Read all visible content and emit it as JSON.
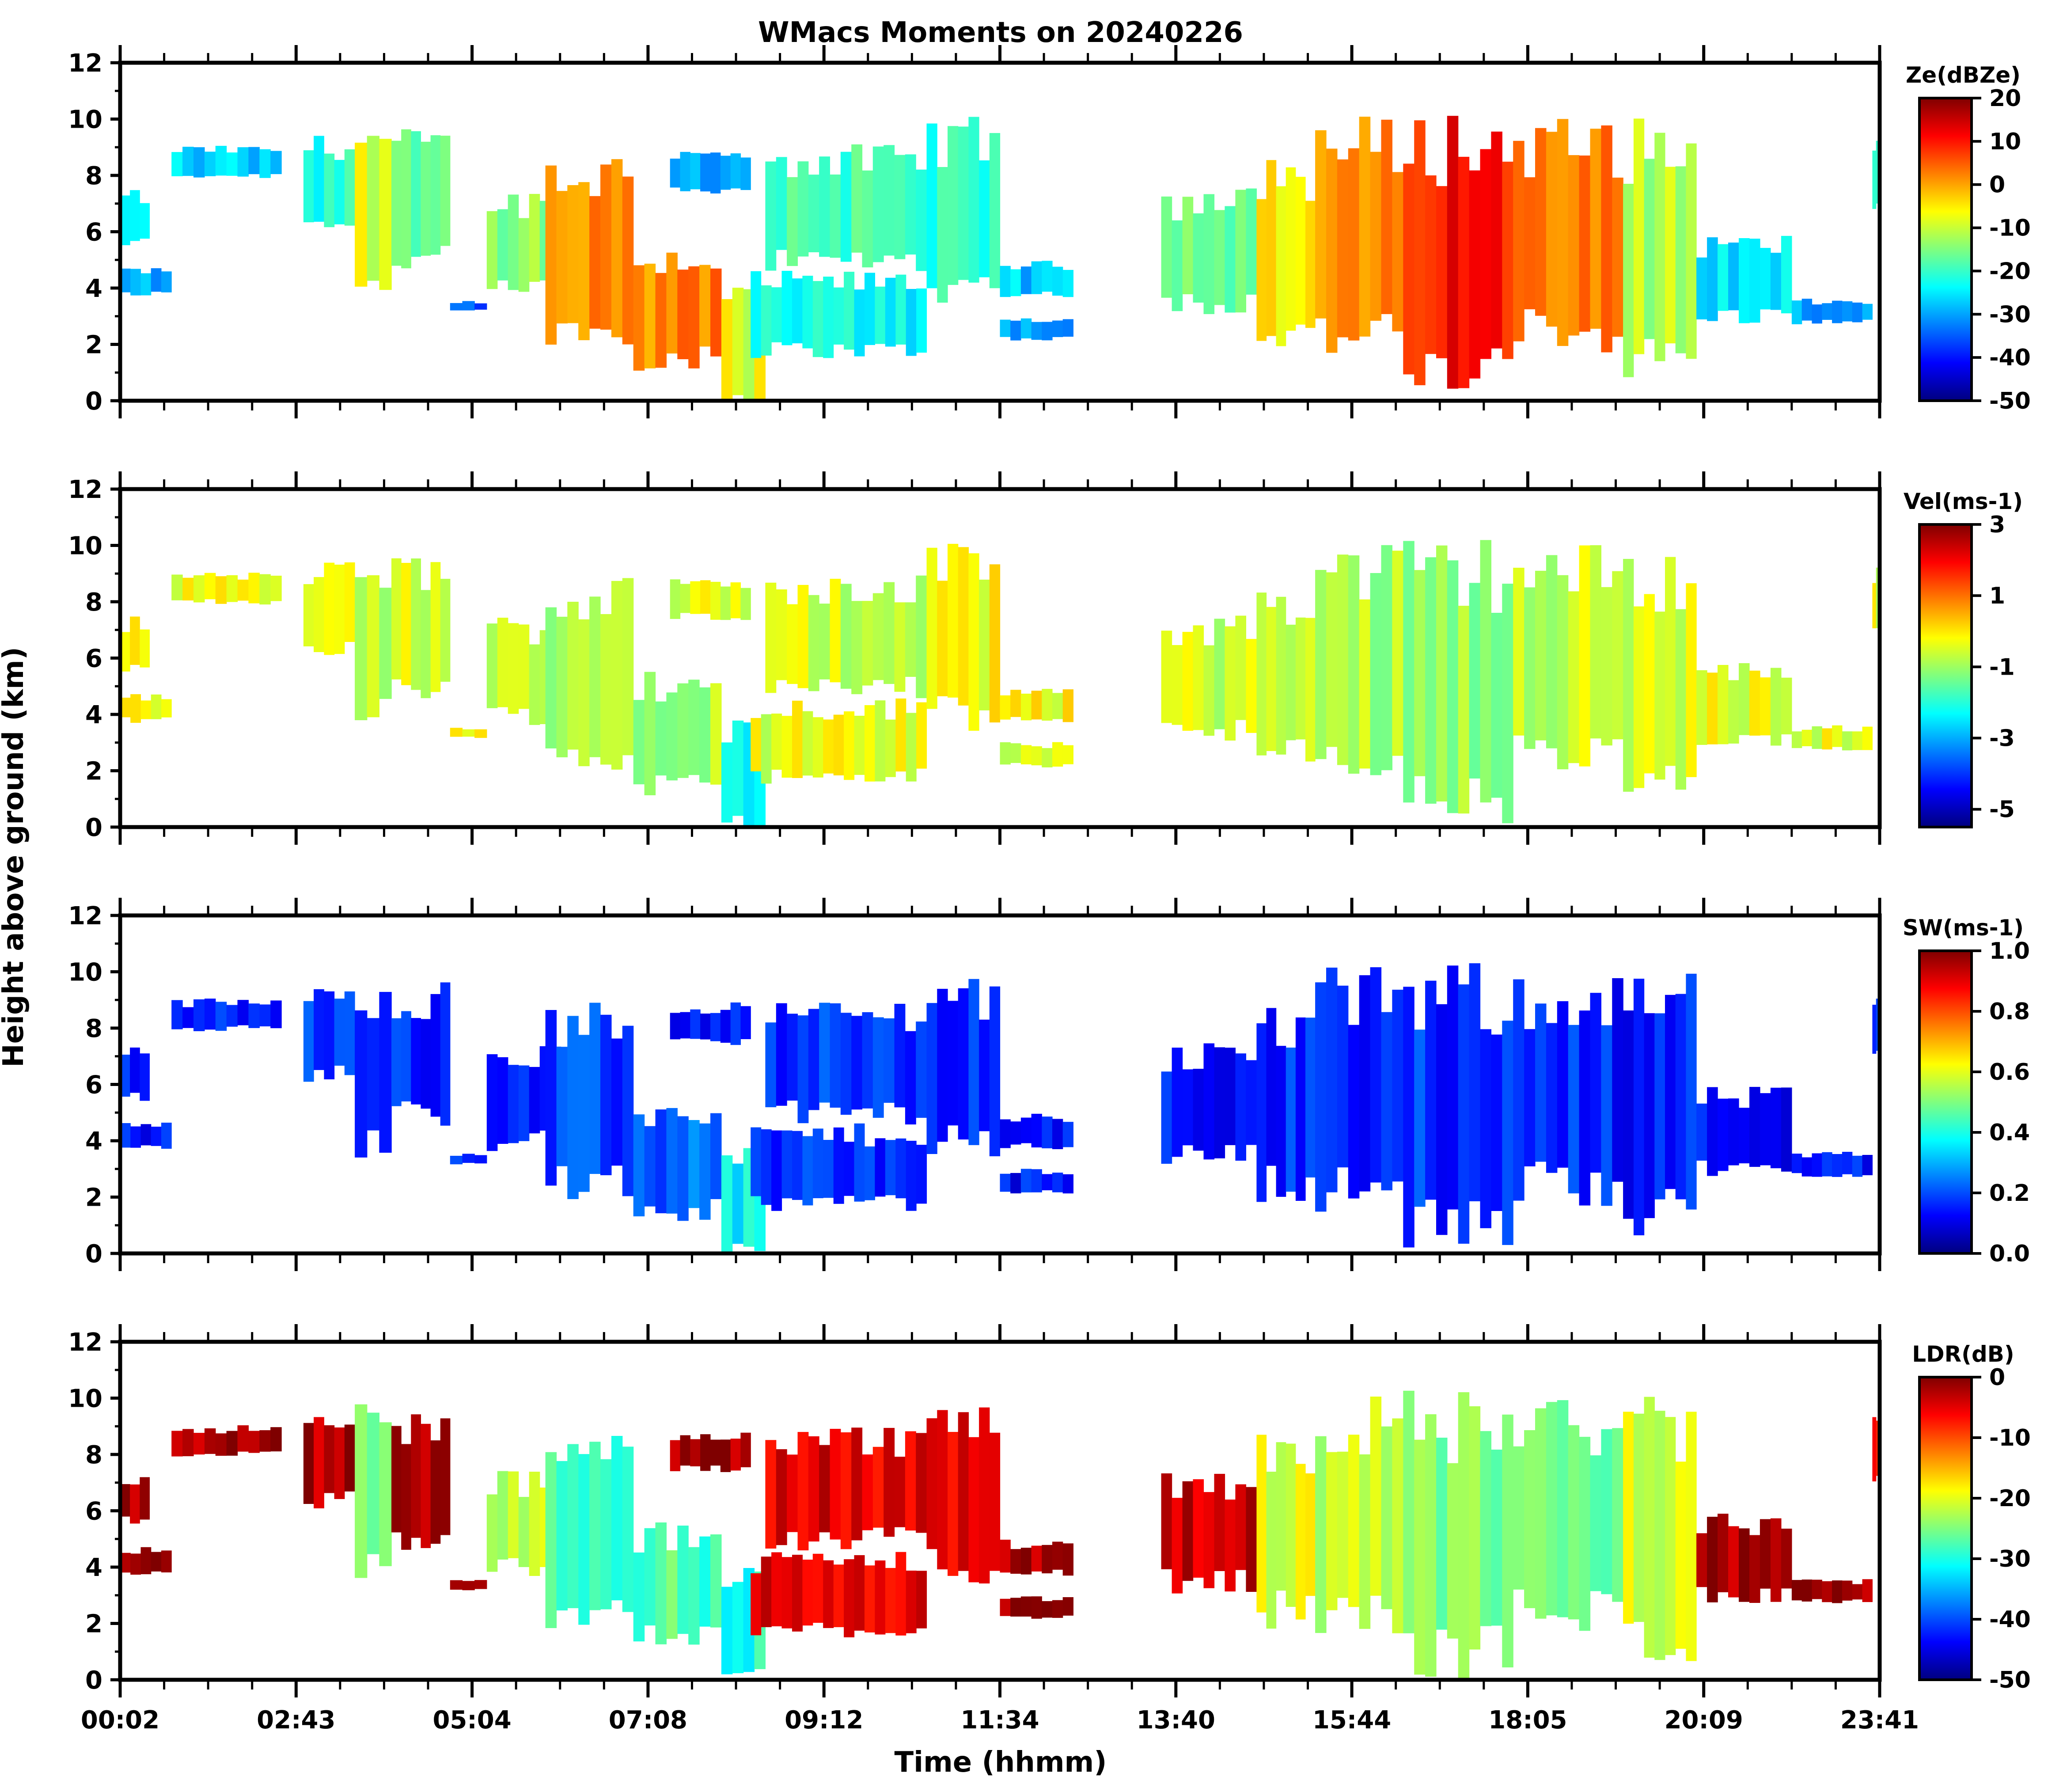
{
  "figure": {
    "title": "WMacs Moments on 20240226",
    "xlabel": "Time (hhmm)",
    "ylabel": "Height above ground (km)"
  },
  "colors": {
    "axis": "#000000",
    "background": "#ffffff",
    "jet": [
      "#00007f",
      "#0000ff",
      "#007fff",
      "#00ffff",
      "#7fff7f",
      "#ffff00",
      "#ff7f00",
      "#ff0000",
      "#7f0000"
    ]
  },
  "chart_data": [
    {
      "type": "heatmap",
      "name": "reflectivity",
      "colorbar_label": "Ze(dBZe)",
      "colorbar_range": [
        -50,
        20
      ],
      "colorbar_ticks": [
        "20",
        "10",
        "0",
        "-10",
        "-20",
        "-30",
        "-40",
        "-50"
      ],
      "ylim": [
        0,
        12
      ],
      "yticks": [
        "0",
        "2",
        "4",
        "6",
        "8",
        "10",
        "12"
      ],
      "xticks": [
        "00:02",
        "02:43",
        "05:04",
        "07:08",
        "09:12",
        "11:34",
        "13:40",
        "15:44",
        "18:05",
        "20:09",
        "23:41"
      ],
      "cloud_cells": [
        {
          "t0": 0.0,
          "t1": 0.4,
          "h0": 5.6,
          "h1": 7.2,
          "v": 0.35
        },
        {
          "t0": 0.0,
          "t1": 0.7,
          "h0": 3.8,
          "h1": 4.6,
          "v": 0.3
        },
        {
          "t0": 0.7,
          "t1": 2.2,
          "h0": 8.0,
          "h1": 8.9,
          "v": 0.33
        },
        {
          "t0": 2.5,
          "t1": 3.2,
          "h0": 6.4,
          "h1": 9.0,
          "v": 0.42
        },
        {
          "t0": 3.2,
          "t1": 3.7,
          "h0": 4.0,
          "h1": 9.2,
          "v": 0.6
        },
        {
          "t0": 3.7,
          "t1": 4.5,
          "h0": 5.0,
          "h1": 9.0,
          "v": 0.5
        },
        {
          "t0": 4.5,
          "t1": 5.0,
          "h0": 3.2,
          "h1": 3.5,
          "v": 0.22
        },
        {
          "t0": 5.0,
          "t1": 6.3,
          "h0": 4.0,
          "h1": 7.0,
          "v": 0.5
        },
        {
          "t0": 5.8,
          "t1": 7.0,
          "h0": 2.5,
          "h1": 8.0,
          "v": 0.72
        },
        {
          "t0": 7.0,
          "t1": 8.2,
          "h0": 1.5,
          "h1": 5.0,
          "v": 0.74
        },
        {
          "t0": 7.5,
          "t1": 8.6,
          "h0": 7.5,
          "h1": 8.7,
          "v": 0.3
        },
        {
          "t0": 8.2,
          "t1": 8.8,
          "h0": 0.1,
          "h1": 3.5,
          "v": 0.6
        },
        {
          "t0": 8.6,
          "t1": 11.0,
          "h0": 1.8,
          "h1": 4.2,
          "v": 0.38
        },
        {
          "t0": 8.8,
          "t1": 11.0,
          "h0": 5.0,
          "h1": 8.5,
          "v": 0.45
        },
        {
          "t0": 11.0,
          "t1": 12.0,
          "h0": 4.0,
          "h1": 9.2,
          "v": 0.4
        },
        {
          "t0": 12.0,
          "t1": 13.0,
          "h0": 3.8,
          "h1": 4.8,
          "v": 0.32
        },
        {
          "t0": 12.0,
          "t1": 13.0,
          "h0": 2.2,
          "h1": 2.9,
          "v": 0.3
        },
        {
          "t0": 14.2,
          "t1": 15.5,
          "h0": 3.5,
          "h1": 7.0,
          "v": 0.5
        },
        {
          "t0": 15.5,
          "t1": 16.3,
          "h0": 2.5,
          "h1": 8.0,
          "v": 0.62
        },
        {
          "t0": 16.3,
          "t1": 17.5,
          "h0": 2.3,
          "h1": 9.0,
          "v": 0.72
        },
        {
          "t0": 17.5,
          "t1": 19.0,
          "h0": 1.0,
          "h1": 9.0,
          "v": 0.86
        },
        {
          "t0": 19.0,
          "t1": 20.5,
          "h0": 2.5,
          "h1": 9.0,
          "v": 0.78
        },
        {
          "t0": 20.5,
          "t1": 21.5,
          "h0": 1.5,
          "h1": 8.8,
          "v": 0.55
        },
        {
          "t0": 21.5,
          "t1": 22.8,
          "h0": 3.0,
          "h1": 5.5,
          "v": 0.35
        },
        {
          "t0": 22.8,
          "t1": 23.9,
          "h0": 2.8,
          "h1": 3.5,
          "v": 0.28
        },
        {
          "t0": 23.9,
          "t1": 24.0,
          "h0": 7.0,
          "h1": 9.0,
          "v": 0.4
        }
      ]
    },
    {
      "type": "heatmap",
      "name": "velocity",
      "colorbar_label": "Vel(ms-1)",
      "colorbar_range": [
        -5.5,
        3
      ],
      "colorbar_ticks": [
        "3",
        "1",
        "-1",
        "-3",
        "-5"
      ],
      "ylim": [
        0,
        12
      ],
      "yticks": [
        "0",
        "2",
        "4",
        "6",
        "8",
        "10",
        "12"
      ],
      "xticks": [
        "00:02",
        "02:43",
        "05:04",
        "07:08",
        "09:12",
        "11:34",
        "13:40",
        "15:44",
        "18:05",
        "20:09",
        "23:41"
      ],
      "cloud_cells": [
        {
          "t0": 0.0,
          "t1": 0.4,
          "h0": 5.6,
          "h1": 7.2,
          "v": 0.62
        },
        {
          "t0": 0.0,
          "t1": 0.7,
          "h0": 3.8,
          "h1": 4.6,
          "v": 0.6
        },
        {
          "t0": 0.7,
          "t1": 2.2,
          "h0": 8.0,
          "h1": 8.9,
          "v": 0.6
        },
        {
          "t0": 2.5,
          "t1": 3.2,
          "h0": 6.4,
          "h1": 9.0,
          "v": 0.6
        },
        {
          "t0": 3.2,
          "t1": 3.7,
          "h0": 4.0,
          "h1": 9.2,
          "v": 0.55
        },
        {
          "t0": 3.7,
          "t1": 4.5,
          "h0": 5.0,
          "h1": 9.0,
          "v": 0.58
        },
        {
          "t0": 4.5,
          "t1": 5.0,
          "h0": 3.2,
          "h1": 3.5,
          "v": 0.6
        },
        {
          "t0": 5.0,
          "t1": 6.3,
          "h0": 4.0,
          "h1": 7.0,
          "v": 0.55
        },
        {
          "t0": 5.8,
          "t1": 7.0,
          "h0": 2.5,
          "h1": 8.0,
          "v": 0.56
        },
        {
          "t0": 7.0,
          "t1": 8.2,
          "h0": 1.5,
          "h1": 5.0,
          "v": 0.55
        },
        {
          "t0": 7.5,
          "t1": 8.6,
          "h0": 7.5,
          "h1": 8.7,
          "v": 0.6
        },
        {
          "t0": 8.2,
          "t1": 8.8,
          "h0": 0.1,
          "h1": 3.5,
          "v": 0.4
        },
        {
          "t0": 8.6,
          "t1": 11.0,
          "h0": 1.8,
          "h1": 4.2,
          "v": 0.6
        },
        {
          "t0": 8.8,
          "t1": 11.0,
          "h0": 5.0,
          "h1": 8.5,
          "v": 0.58
        },
        {
          "t0": 11.0,
          "t1": 12.0,
          "h0": 4.0,
          "h1": 9.2,
          "v": 0.62
        },
        {
          "t0": 12.0,
          "t1": 13.0,
          "h0": 3.8,
          "h1": 4.8,
          "v": 0.62
        },
        {
          "t0": 12.0,
          "t1": 13.0,
          "h0": 2.2,
          "h1": 2.9,
          "v": 0.6
        },
        {
          "t0": 14.2,
          "t1": 15.5,
          "h0": 3.5,
          "h1": 7.0,
          "v": 0.58
        },
        {
          "t0": 15.5,
          "t1": 16.3,
          "h0": 2.5,
          "h1": 8.0,
          "v": 0.56
        },
        {
          "t0": 16.3,
          "t1": 17.5,
          "h0": 2.3,
          "h1": 9.0,
          "v": 0.55
        },
        {
          "t0": 17.5,
          "t1": 19.0,
          "h0": 1.0,
          "h1": 9.0,
          "v": 0.53
        },
        {
          "t0": 19.0,
          "t1": 20.5,
          "h0": 2.5,
          "h1": 9.0,
          "v": 0.57
        },
        {
          "t0": 20.5,
          "t1": 21.5,
          "h0": 1.5,
          "h1": 8.8,
          "v": 0.58
        },
        {
          "t0": 21.5,
          "t1": 22.8,
          "h0": 3.0,
          "h1": 5.5,
          "v": 0.6
        },
        {
          "t0": 22.8,
          "t1": 23.9,
          "h0": 2.8,
          "h1": 3.5,
          "v": 0.6
        },
        {
          "t0": 23.9,
          "t1": 24.0,
          "h0": 7.0,
          "h1": 9.0,
          "v": 0.6
        }
      ]
    },
    {
      "type": "heatmap",
      "name": "spectrum_width",
      "colorbar_label": "SW(ms-1)",
      "colorbar_range": [
        0.0,
        1.0
      ],
      "colorbar_ticks": [
        "1.0",
        "0.8",
        "0.6",
        "0.4",
        "0.2",
        "0.0"
      ],
      "ylim": [
        0,
        12
      ],
      "yticks": [
        "0",
        "2",
        "4",
        "6",
        "8",
        "10",
        "12"
      ],
      "xticks": [
        "00:02",
        "02:43",
        "05:04",
        "07:08",
        "09:12",
        "11:34",
        "13:40",
        "15:44",
        "18:05",
        "20:09",
        "23:41"
      ],
      "cloud_cells": [
        {
          "t0": 0.0,
          "t1": 0.4,
          "h0": 5.6,
          "h1": 7.2,
          "v": 0.14
        },
        {
          "t0": 0.0,
          "t1": 0.7,
          "h0": 3.8,
          "h1": 4.6,
          "v": 0.14
        },
        {
          "t0": 0.7,
          "t1": 2.2,
          "h0": 8.0,
          "h1": 8.9,
          "v": 0.15
        },
        {
          "t0": 2.5,
          "t1": 3.2,
          "h0": 6.4,
          "h1": 9.0,
          "v": 0.18
        },
        {
          "t0": 3.2,
          "t1": 3.7,
          "h0": 4.0,
          "h1": 9.2,
          "v": 0.2
        },
        {
          "t0": 3.7,
          "t1": 4.5,
          "h0": 5.0,
          "h1": 9.0,
          "v": 0.17
        },
        {
          "t0": 4.5,
          "t1": 5.0,
          "h0": 3.2,
          "h1": 3.5,
          "v": 0.15
        },
        {
          "t0": 5.0,
          "t1": 6.3,
          "h0": 4.0,
          "h1": 7.0,
          "v": 0.17
        },
        {
          "t0": 5.8,
          "t1": 7.0,
          "h0": 2.5,
          "h1": 8.0,
          "v": 0.18
        },
        {
          "t0": 7.0,
          "t1": 8.2,
          "h0": 1.5,
          "h1": 5.0,
          "v": 0.22
        },
        {
          "t0": 7.5,
          "t1": 8.6,
          "h0": 7.5,
          "h1": 8.7,
          "v": 0.15
        },
        {
          "t0": 8.2,
          "t1": 8.8,
          "h0": 0.1,
          "h1": 3.5,
          "v": 0.38
        },
        {
          "t0": 8.6,
          "t1": 11.0,
          "h0": 1.8,
          "h1": 4.2,
          "v": 0.17
        },
        {
          "t0": 8.8,
          "t1": 11.0,
          "h0": 5.0,
          "h1": 8.5,
          "v": 0.17
        },
        {
          "t0": 11.0,
          "t1": 12.0,
          "h0": 4.0,
          "h1": 9.2,
          "v": 0.15
        },
        {
          "t0": 12.0,
          "t1": 13.0,
          "h0": 3.8,
          "h1": 4.8,
          "v": 0.14
        },
        {
          "t0": 12.0,
          "t1": 13.0,
          "h0": 2.2,
          "h1": 2.9,
          "v": 0.14
        },
        {
          "t0": 14.2,
          "t1": 15.5,
          "h0": 3.5,
          "h1": 7.0,
          "v": 0.15
        },
        {
          "t0": 15.5,
          "t1": 16.3,
          "h0": 2.5,
          "h1": 8.0,
          "v": 0.16
        },
        {
          "t0": 16.3,
          "t1": 17.5,
          "h0": 2.3,
          "h1": 9.0,
          "v": 0.15
        },
        {
          "t0": 17.5,
          "t1": 19.0,
          "h0": 1.0,
          "h1": 9.0,
          "v": 0.17
        },
        {
          "t0": 19.0,
          "t1": 20.5,
          "h0": 2.5,
          "h1": 9.0,
          "v": 0.16
        },
        {
          "t0": 20.5,
          "t1": 21.5,
          "h0": 1.5,
          "h1": 8.8,
          "v": 0.15
        },
        {
          "t0": 21.5,
          "t1": 22.8,
          "h0": 3.0,
          "h1": 5.5,
          "v": 0.14
        },
        {
          "t0": 22.8,
          "t1": 23.9,
          "h0": 2.8,
          "h1": 3.5,
          "v": 0.14
        },
        {
          "t0": 23.9,
          "t1": 24.0,
          "h0": 7.0,
          "h1": 9.0,
          "v": 0.15
        }
      ]
    },
    {
      "type": "heatmap",
      "name": "ldr",
      "colorbar_label": "LDR(dB)",
      "colorbar_range": [
        -50,
        0
      ],
      "colorbar_ticks": [
        "0",
        "-10",
        "-20",
        "-30",
        "-40",
        "-50"
      ],
      "ylim": [
        0,
        12
      ],
      "yticks": [
        "0",
        "2",
        "4",
        "6",
        "8",
        "10",
        "12"
      ],
      "xticks": [
        "00:02",
        "02:43",
        "05:04",
        "07:08",
        "09:12",
        "11:34",
        "13:40",
        "15:44",
        "18:05",
        "20:09",
        "23:41"
      ],
      "cloud_cells": [
        {
          "t0": 0.0,
          "t1": 0.4,
          "h0": 5.6,
          "h1": 7.2,
          "v": 0.97
        },
        {
          "t0": 0.0,
          "t1": 0.7,
          "h0": 3.8,
          "h1": 4.6,
          "v": 0.97
        },
        {
          "t0": 0.7,
          "t1": 2.2,
          "h0": 8.0,
          "h1": 8.9,
          "v": 0.97
        },
        {
          "t0": 2.5,
          "t1": 3.2,
          "h0": 6.4,
          "h1": 9.0,
          "v": 0.95
        },
        {
          "t0": 3.2,
          "t1": 3.7,
          "h0": 4.0,
          "h1": 9.2,
          "v": 0.5
        },
        {
          "t0": 3.7,
          "t1": 4.5,
          "h0": 5.0,
          "h1": 9.0,
          "v": 0.95
        },
        {
          "t0": 4.5,
          "t1": 5.0,
          "h0": 3.2,
          "h1": 3.5,
          "v": 0.97
        },
        {
          "t0": 5.0,
          "t1": 6.3,
          "h0": 4.0,
          "h1": 7.0,
          "v": 0.55
        },
        {
          "t0": 5.8,
          "t1": 7.0,
          "h0": 2.5,
          "h1": 8.0,
          "v": 0.45
        },
        {
          "t0": 7.0,
          "t1": 8.2,
          "h0": 1.5,
          "h1": 5.0,
          "v": 0.45
        },
        {
          "t0": 7.5,
          "t1": 8.6,
          "h0": 7.5,
          "h1": 8.7,
          "v": 0.97
        },
        {
          "t0": 8.2,
          "t1": 8.8,
          "h0": 0.1,
          "h1": 3.5,
          "v": 0.4
        },
        {
          "t0": 8.6,
          "t1": 11.0,
          "h0": 1.8,
          "h1": 4.2,
          "v": 0.9
        },
        {
          "t0": 8.8,
          "t1": 11.0,
          "h0": 5.0,
          "h1": 8.5,
          "v": 0.9
        },
        {
          "t0": 11.0,
          "t1": 12.0,
          "h0": 4.0,
          "h1": 9.2,
          "v": 0.9
        },
        {
          "t0": 12.0,
          "t1": 13.0,
          "h0": 3.8,
          "h1": 4.8,
          "v": 0.97
        },
        {
          "t0": 12.0,
          "t1": 13.0,
          "h0": 2.2,
          "h1": 2.9,
          "v": 0.97
        },
        {
          "t0": 14.2,
          "t1": 15.5,
          "h0": 3.5,
          "h1": 7.0,
          "v": 0.92
        },
        {
          "t0": 15.5,
          "t1": 16.3,
          "h0": 2.5,
          "h1": 8.0,
          "v": 0.6
        },
        {
          "t0": 16.3,
          "t1": 17.5,
          "h0": 2.3,
          "h1": 9.0,
          "v": 0.55
        },
        {
          "t0": 17.5,
          "t1": 19.0,
          "h0": 1.0,
          "h1": 9.0,
          "v": 0.5
        },
        {
          "t0": 19.0,
          "t1": 20.5,
          "h0": 2.5,
          "h1": 9.0,
          "v": 0.5
        },
        {
          "t0": 20.5,
          "t1": 21.5,
          "h0": 1.5,
          "h1": 8.8,
          "v": 0.6
        },
        {
          "t0": 21.5,
          "t1": 22.8,
          "h0": 3.0,
          "h1": 5.5,
          "v": 0.95
        },
        {
          "t0": 22.8,
          "t1": 23.9,
          "h0": 2.8,
          "h1": 3.5,
          "v": 0.97
        },
        {
          "t0": 23.9,
          "t1": 24.0,
          "h0": 7.0,
          "h1": 9.0,
          "v": 0.9
        }
      ]
    }
  ]
}
